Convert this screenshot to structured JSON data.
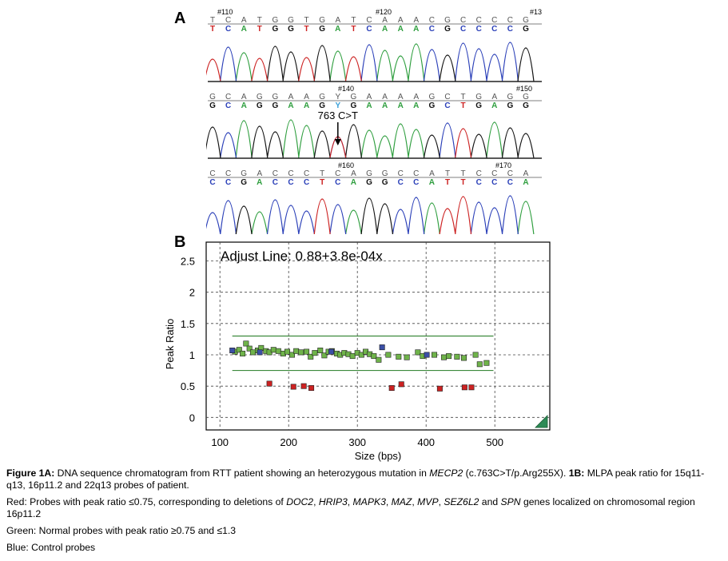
{
  "panel_a": {
    "label": "A",
    "rows": [
      {
        "position_labels": [
          "#110",
          "#120",
          "#13"
        ],
        "top_bases": [
          "T",
          "C",
          "A",
          "T",
          "G",
          "G",
          "T",
          "G",
          "A",
          "T",
          "C",
          "A",
          "A",
          "A",
          "C",
          "G",
          "C",
          "C",
          "C",
          "C",
          "G"
        ],
        "call_bases": [
          "T",
          "C",
          "A",
          "T",
          "G",
          "G",
          "T",
          "G",
          "A",
          "T",
          "C",
          "A",
          "A",
          "A",
          "C",
          "G",
          "C",
          "C",
          "C",
          "C",
          "G"
        ]
      },
      {
        "position_labels": [
          "#140",
          "#150"
        ],
        "top_bases": [
          "G",
          "C",
          "A",
          "G",
          "G",
          "A",
          "A",
          "G",
          "Y",
          "G",
          "A",
          "A",
          "A",
          "A",
          "G",
          "C",
          "T",
          "G",
          "A",
          "G",
          "G"
        ],
        "call_bases": [
          "G",
          "C",
          "A",
          "G",
          "G",
          "A",
          "A",
          "G",
          "Y",
          "G",
          "A",
          "A",
          "A",
          "A",
          "G",
          "C",
          "T",
          "G",
          "A",
          "G",
          "G"
        ]
      },
      {
        "position_labels": [
          "#160",
          "#170"
        ],
        "top_bases": [
          "C",
          "C",
          "G",
          "A",
          "C",
          "C",
          "C",
          "T",
          "C",
          "A",
          "G",
          "G",
          "C",
          "C",
          "A",
          "T",
          "T",
          "C",
          "C",
          "C",
          "A"
        ],
        "call_bases": [
          "C",
          "C",
          "G",
          "A",
          "C",
          "C",
          "C",
          "T",
          "C",
          "A",
          "G",
          "G",
          "C",
          "C",
          "A",
          "T",
          "T",
          "C",
          "C",
          "C",
          "A"
        ]
      }
    ],
    "mutation_label": "763 C>T"
  },
  "panel_b": {
    "label": "B",
    "annotation": "Adjust Line: 0.88+3.8e-04x"
  },
  "chart_data": {
    "type": "scatter",
    "title": "",
    "xlabel": "Size (bps)",
    "ylabel": "Peak Ratio",
    "xlim": [
      80,
      580
    ],
    "ylim": [
      -0.2,
      2.8
    ],
    "x_ticks": [
      "100",
      "200",
      "300",
      "400",
      "500"
    ],
    "y_ticks": [
      "0",
      "0.5",
      "1",
      "1.5",
      "2",
      "2.5"
    ],
    "reference_lines": [
      0.75,
      1.3
    ],
    "grid": true,
    "colors": {
      "normal": "#6fb34a",
      "deleted": "#cc2222",
      "control": "#3b4fa6"
    },
    "series": [
      {
        "name": "Normal probes",
        "points": [
          [
            122,
            1.05
          ],
          [
            128,
            1.08
          ],
          [
            133,
            1.02
          ],
          [
            138,
            1.18
          ],
          [
            143,
            1.1
          ],
          [
            148,
            1.04
          ],
          [
            155,
            1.07
          ],
          [
            160,
            1.11
          ],
          [
            167,
            1.06
          ],
          [
            172,
            1.04
          ],
          [
            178,
            1.08
          ],
          [
            185,
            1.06
          ],
          [
            192,
            1.02
          ],
          [
            198,
            1.05
          ],
          [
            205,
            1.0
          ],
          [
            211,
            1.06
          ],
          [
            218,
            1.04
          ],
          [
            226,
            1.05
          ],
          [
            232,
            0.97
          ],
          [
            238,
            1.03
          ],
          [
            246,
            1.07
          ],
          [
            252,
            0.99
          ],
          [
            258,
            1.05
          ],
          [
            263,
            1.06
          ],
          [
            270,
            1.02
          ],
          [
            275,
            1.0
          ],
          [
            281,
            1.03
          ],
          [
            287,
            1.01
          ],
          [
            293,
            0.98
          ],
          [
            300,
            1.03
          ],
          [
            306,
            1.0
          ],
          [
            312,
            1.05
          ],
          [
            318,
            1.01
          ],
          [
            324,
            0.98
          ],
          [
            331,
            0.92
          ],
          [
            345,
            1.0
          ],
          [
            360,
            0.97
          ],
          [
            372,
            0.96
          ],
          [
            388,
            1.04
          ],
          [
            395,
            0.98
          ],
          [
            412,
            1.0
          ],
          [
            426,
            0.96
          ],
          [
            433,
            0.98
          ],
          [
            445,
            0.97
          ],
          [
            455,
            0.95
          ],
          [
            472,
            1.0
          ],
          [
            478,
            0.85
          ],
          [
            488,
            0.87
          ]
        ]
      },
      {
        "name": "Deleted probes",
        "points": [
          [
            172,
            0.54
          ],
          [
            207,
            0.49
          ],
          [
            222,
            0.5
          ],
          [
            233,
            0.47
          ],
          [
            350,
            0.47
          ],
          [
            364,
            0.53
          ],
          [
            420,
            0.46
          ],
          [
            456,
            0.48
          ],
          [
            466,
            0.48
          ]
        ]
      },
      {
        "name": "Control probes",
        "points": [
          [
            118,
            1.07
          ],
          [
            158,
            1.04
          ],
          [
            262,
            1.05
          ],
          [
            336,
            1.12
          ],
          [
            401,
            1.0
          ]
        ]
      }
    ]
  },
  "caption": {
    "p1": {
      "label_1a": "Figure 1A:",
      "text_1": " DNA sequence chromatogram from RTT patient showing an heterozygous mutation in ",
      "gene": "MECP2",
      "text_2": " (c.763C>T/p.Arg255X). ",
      "label_1b": "1B:",
      "text_3": " MLPA peak ratio for 15q11-q13, 16p11.2 and 22q13 probes of patient."
    },
    "p2": {
      "text_1": "Red: Probes with peak ratio ≤0.75, corresponding to deletions of ",
      "g1": "DOC2",
      "sep1": ", ",
      "g2": "HRIP3",
      "sep2": ", ",
      "g3": "MAPK3",
      "sep3": ", ",
      "g4": "MAZ",
      "sep4": ", ",
      "g5": "MVP",
      "sep5": ", ",
      "g6": "SEZ6L2",
      "sep6": " and ",
      "g7": "SPN",
      "text_2": " genes localized on chromosomal region 16p11.2"
    },
    "p3": "Green: Normal probes with peak ratio ≥0.75 and ≤1.3",
    "p4": "Blue: Control probes"
  }
}
